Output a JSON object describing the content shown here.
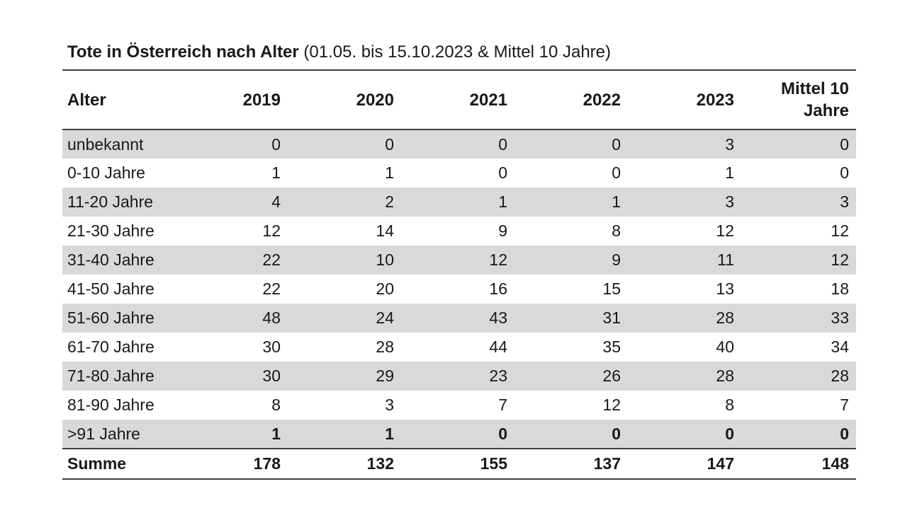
{
  "title": {
    "main": "Tote in Österreich nach Alter",
    "sub": " (01.05. bis 15.10.2023 & Mittel 10 Jahre)"
  },
  "chart_data": {
    "type": "table",
    "title": "Tote in Österreich nach Alter (01.05. bis 15.10.2023 & Mittel 10 Jahre)",
    "columns": [
      "Alter",
      "2019",
      "2020",
      "2021",
      "2022",
      "2023",
      "Mittel 10 Jahre"
    ],
    "rows": [
      {
        "label": "unbekannt",
        "values": [
          0,
          0,
          0,
          0,
          3,
          0
        ],
        "emphasis": false
      },
      {
        "label": "0-10 Jahre",
        "values": [
          1,
          1,
          0,
          0,
          1,
          0
        ],
        "emphasis": false
      },
      {
        "label": "11-20 Jahre",
        "values": [
          4,
          2,
          1,
          1,
          3,
          3
        ],
        "emphasis": false
      },
      {
        "label": "21-30 Jahre",
        "values": [
          12,
          14,
          9,
          8,
          12,
          12
        ],
        "emphasis": false
      },
      {
        "label": "31-40 Jahre",
        "values": [
          22,
          10,
          12,
          9,
          11,
          12
        ],
        "emphasis": false
      },
      {
        "label": "41-50 Jahre",
        "values": [
          22,
          20,
          16,
          15,
          13,
          18
        ],
        "emphasis": false
      },
      {
        "label": "51-60 Jahre",
        "values": [
          48,
          24,
          43,
          31,
          28,
          33
        ],
        "emphasis": false
      },
      {
        "label": "61-70 Jahre",
        "values": [
          30,
          28,
          44,
          35,
          40,
          34
        ],
        "emphasis": false
      },
      {
        "label": "71-80 Jahre",
        "values": [
          30,
          29,
          23,
          26,
          28,
          28
        ],
        "emphasis": false
      },
      {
        "label": "81-90 Jahre",
        "values": [
          8,
          3,
          7,
          12,
          8,
          7
        ],
        "emphasis": false
      },
      {
        "label": ">91 Jahre",
        "values": [
          1,
          1,
          0,
          0,
          0,
          0
        ],
        "emphasis": true
      }
    ],
    "summary": {
      "label": "Summe",
      "values": [
        178,
        132,
        155,
        137,
        147,
        148
      ]
    }
  },
  "colors": {
    "stripe": "#d9d9d9",
    "border": "#3f3f3f"
  }
}
